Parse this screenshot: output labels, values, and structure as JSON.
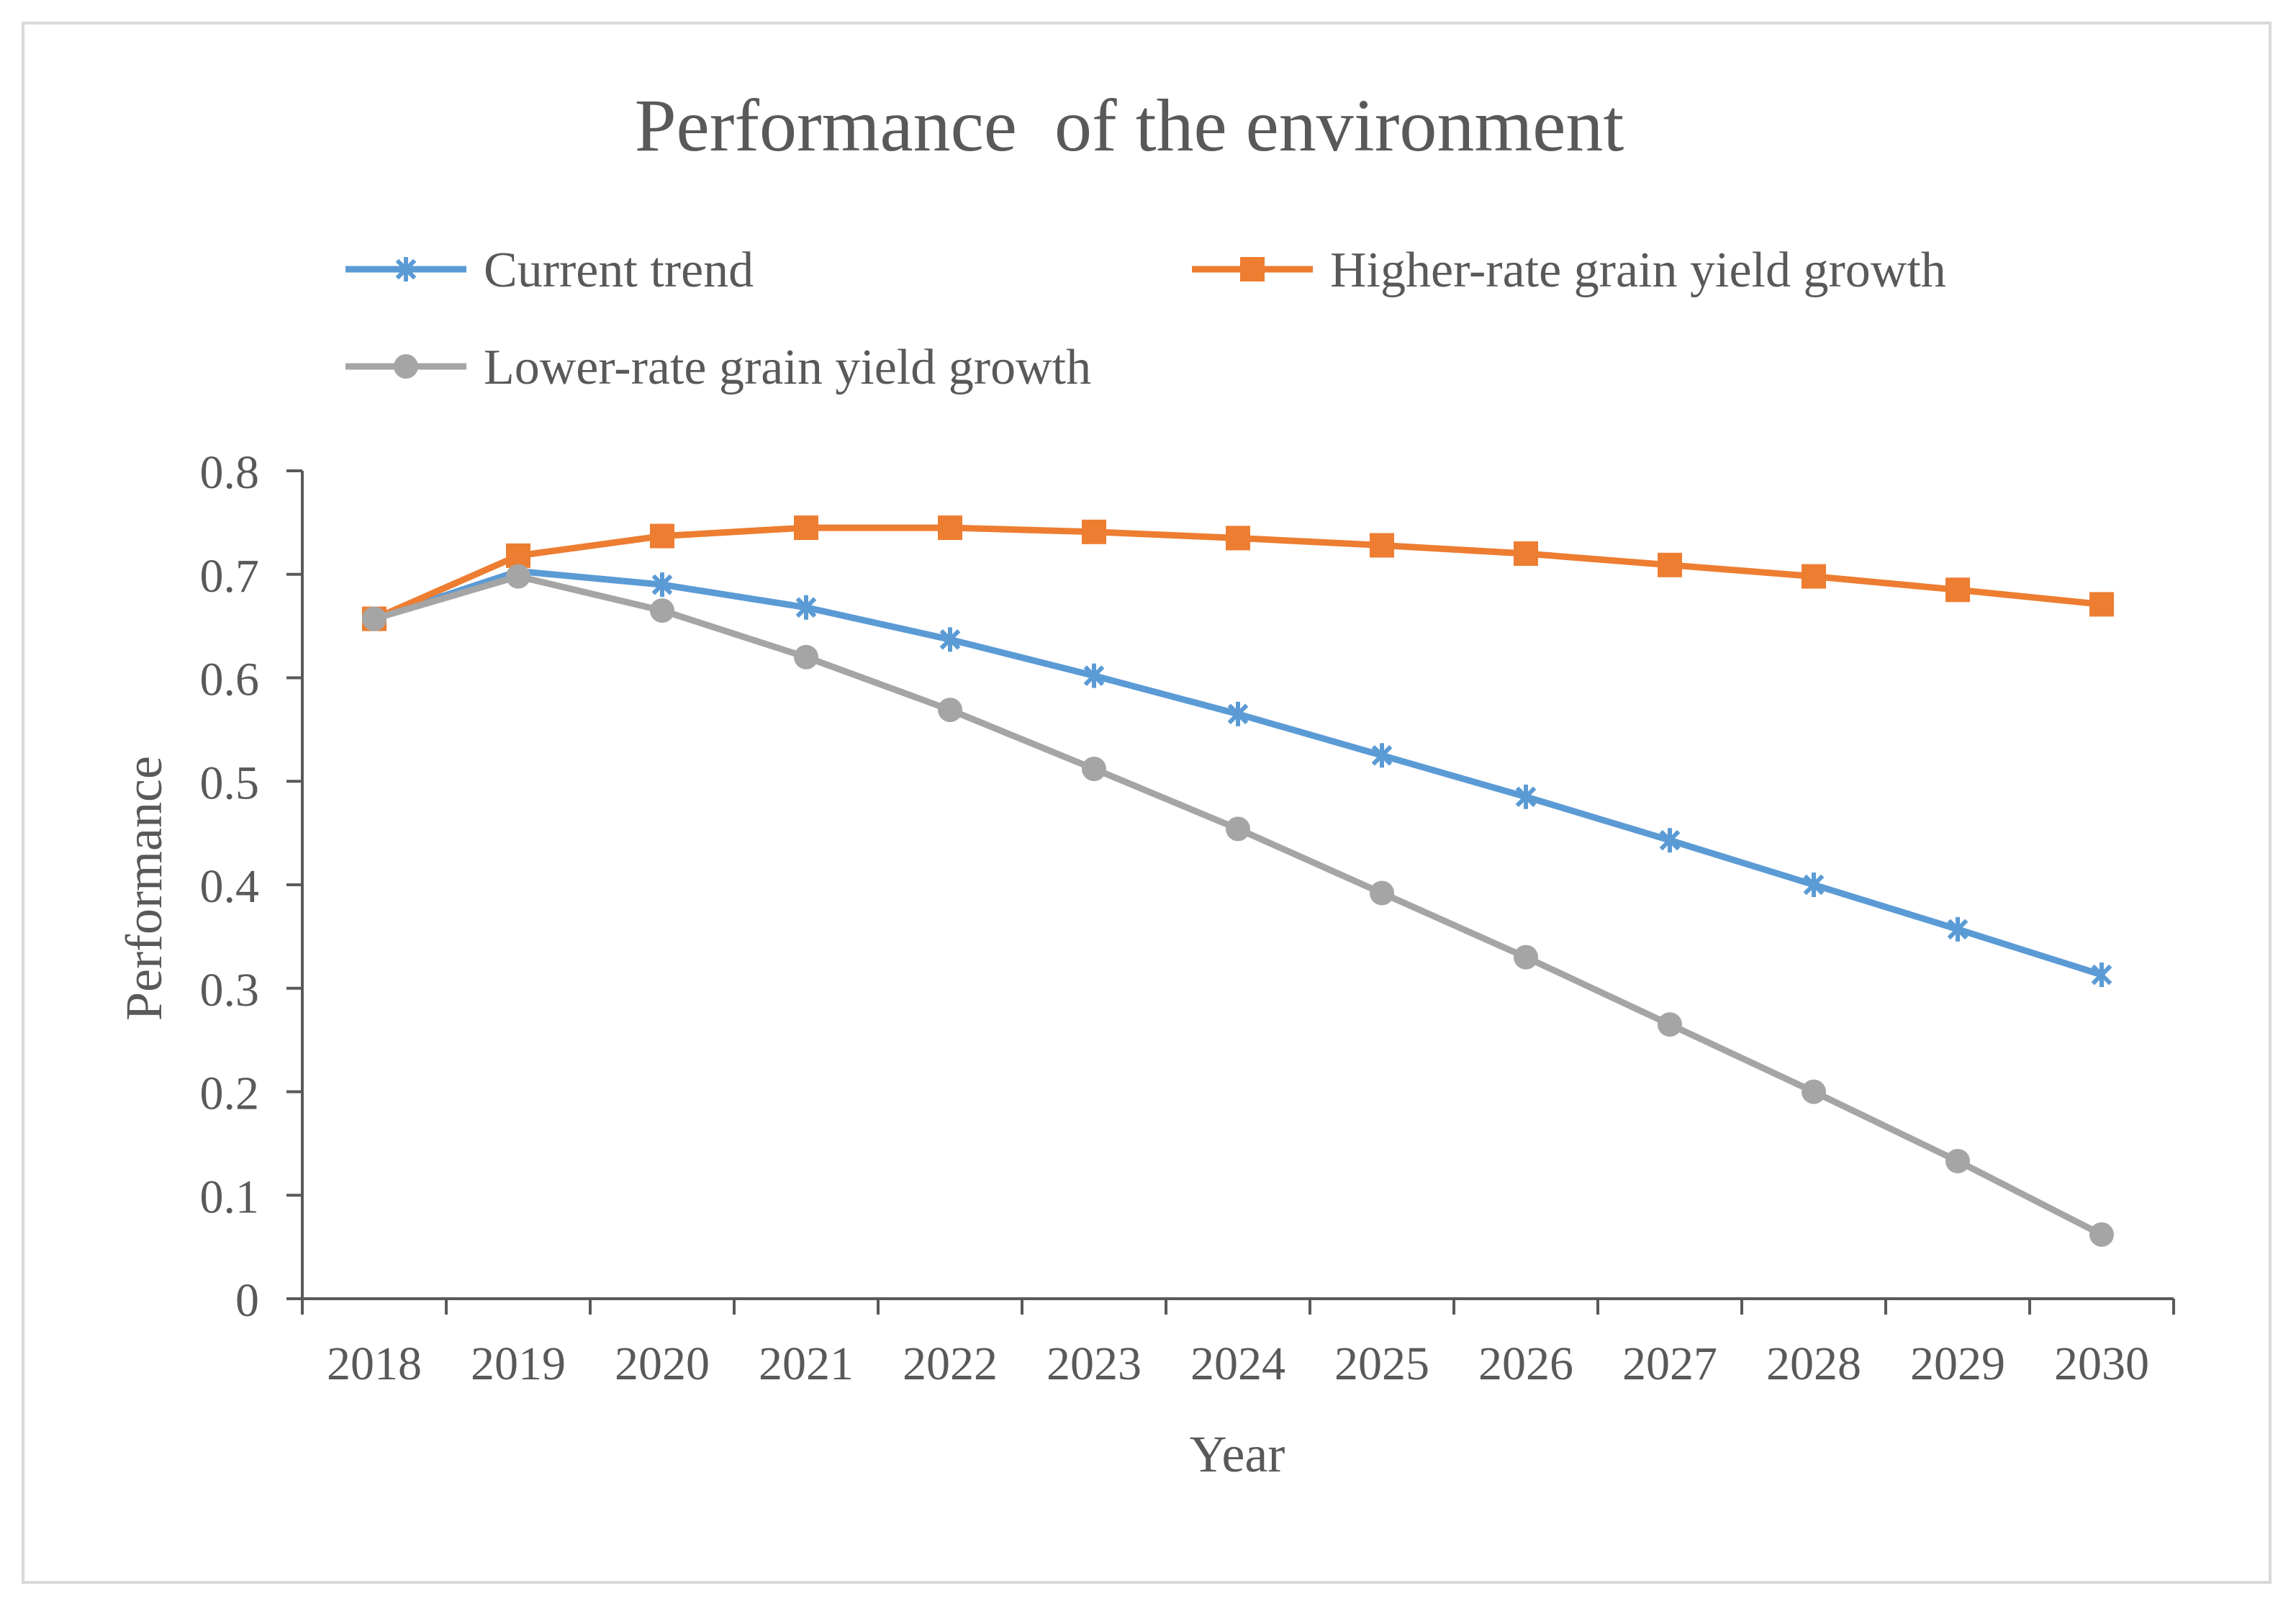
{
  "chart_data": {
    "type": "line",
    "title": "Performance  of the environment",
    "xlabel": "Year",
    "ylabel": "Performance",
    "ylim": [
      0,
      0.8
    ],
    "yticks": [
      "0",
      "0.1",
      "0.2",
      "0.3",
      "0.4",
      "0.5",
      "0.6",
      "0.7",
      "0.8"
    ],
    "grid": false,
    "legend_position": "top",
    "categories": [
      "2018",
      "2019",
      "2020",
      "2021",
      "2022",
      "2023",
      "2024",
      "2025",
      "2026",
      "2027",
      "2028",
      "2029",
      "2030"
    ],
    "series": [
      {
        "name": "Current trend",
        "color": "#5b9bd5",
        "marker": "asterisk",
        "values": [
          0.657,
          0.703,
          0.69,
          0.668,
          0.637,
          0.602,
          0.565,
          0.525,
          0.485,
          0.443,
          0.4,
          0.357,
          0.313
        ]
      },
      {
        "name": "Higher-rate grain yield growth",
        "color": "#ed7d31",
        "marker": "square",
        "values": [
          0.657,
          0.718,
          0.737,
          0.745,
          0.745,
          0.741,
          0.735,
          0.728,
          0.72,
          0.709,
          0.698,
          0.685,
          0.671
        ]
      },
      {
        "name": "Lower-rate grain yield growth",
        "color": "#a5a5a5",
        "marker": "circle",
        "values": [
          0.657,
          0.698,
          0.665,
          0.62,
          0.569,
          0.512,
          0.454,
          0.392,
          0.33,
          0.265,
          0.2,
          0.133,
          0.062
        ]
      }
    ]
  }
}
